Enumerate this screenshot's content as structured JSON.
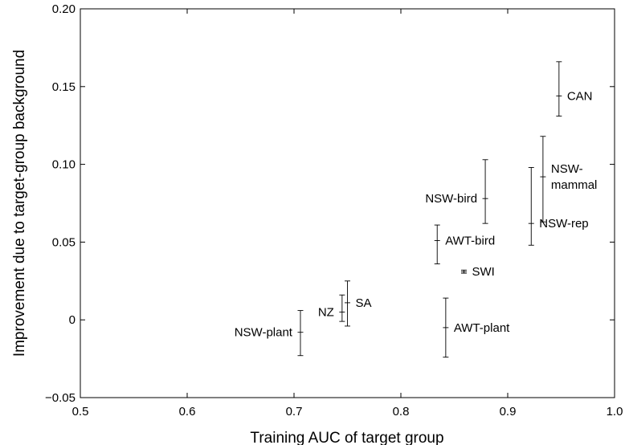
{
  "chart_data": {
    "type": "scatter",
    "title": "",
    "xlabel": "Training AUC of target group",
    "ylabel": "Improvement due to target-group background",
    "xlim": [
      0.5,
      1.0
    ],
    "ylim": [
      -0.05,
      0.2
    ],
    "xticks": [
      0.5,
      0.6,
      0.7,
      0.8,
      0.9,
      1.0
    ],
    "xtick_labels": [
      "0.5",
      "0.6",
      "0.7",
      "0.8",
      "0.9",
      "1.0"
    ],
    "yticks": [
      -0.05,
      0,
      0.05,
      0.1,
      0.15,
      0.2
    ],
    "ytick_labels": [
      "−0.05",
      "0",
      "0.05",
      "0.10",
      "0.15",
      "0.20"
    ],
    "grid": false,
    "points": [
      {
        "label": "CAN",
        "x": 0.948,
        "y": 0.144,
        "low": 0.131,
        "high": 0.166,
        "label_side": "right"
      },
      {
        "label": "NSW-\nmammal",
        "x": 0.933,
        "y": 0.092,
        "low": 0.063,
        "high": 0.118,
        "label_side": "right"
      },
      {
        "label": "NSW-rep",
        "x": 0.922,
        "y": 0.062,
        "low": 0.048,
        "high": 0.098,
        "label_side": "right"
      },
      {
        "label": "NSW-bird",
        "x": 0.879,
        "y": 0.078,
        "low": 0.062,
        "high": 0.103,
        "label_side": "left"
      },
      {
        "label": "AWT-bird",
        "x": 0.834,
        "y": 0.051,
        "low": 0.036,
        "high": 0.061,
        "label_side": "right"
      },
      {
        "label": "SWI",
        "x": 0.859,
        "y": 0.031,
        "low": 0.03,
        "high": 0.032,
        "label_side": "right"
      },
      {
        "label": "SA",
        "x": 0.75,
        "y": 0.011,
        "low": -0.004,
        "high": 0.025,
        "label_side": "right"
      },
      {
        "label": "NZ",
        "x": 0.745,
        "y": 0.005,
        "low": -0.001,
        "high": 0.016,
        "label_side": "left"
      },
      {
        "label": "NSW-plant",
        "x": 0.706,
        "y": -0.008,
        "low": -0.023,
        "high": 0.006,
        "label_side": "left"
      },
      {
        "label": "AWT-plant",
        "x": 0.842,
        "y": -0.005,
        "low": -0.024,
        "high": 0.014,
        "label_side": "right"
      }
    ]
  }
}
